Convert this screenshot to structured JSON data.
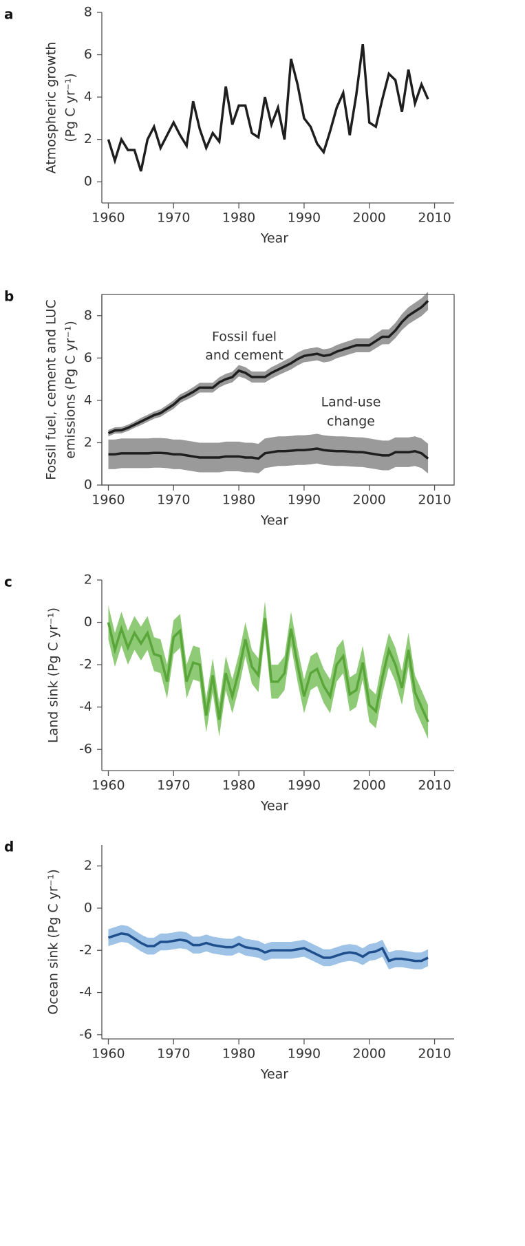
{
  "chart_data": [
    {
      "type": "line",
      "label": "a",
      "ylabel": [
        "Atmospheric growth",
        "(Pg C yr⁻¹)"
      ],
      "xlabel": "Year",
      "frame": false,
      "xlim": [
        1959,
        2013
      ],
      "xticks": [
        1960,
        1970,
        1980,
        1990,
        2000,
        2010
      ],
      "ylim": [
        -1,
        8
      ],
      "yticks": [
        0,
        2,
        4,
        6,
        8
      ],
      "x": [
        1960,
        1961,
        1962,
        1963,
        1964,
        1965,
        1966,
        1967,
        1968,
        1969,
        1970,
        1971,
        1972,
        1973,
        1974,
        1975,
        1976,
        1977,
        1978,
        1979,
        1980,
        1981,
        1982,
        1983,
        1984,
        1985,
        1986,
        1987,
        1988,
        1989,
        1990,
        1991,
        1992,
        1993,
        1994,
        1995,
        1996,
        1997,
        1998,
        1999,
        2000,
        2001,
        2002,
        2003,
        2004,
        2005,
        2006,
        2007,
        2008,
        2009
      ],
      "series": [
        {
          "color": "#1e1e1e",
          "values": [
            2.0,
            1.0,
            2.0,
            1.5,
            1.5,
            0.5,
            2.0,
            2.6,
            1.6,
            2.2,
            2.8,
            2.2,
            1.7,
            3.8,
            2.5,
            1.6,
            2.3,
            1.9,
            4.5,
            2.7,
            3.6,
            3.6,
            2.3,
            2.1,
            4.0,
            2.7,
            3.5,
            2.0,
            5.8,
            4.6,
            3.0,
            2.6,
            1.8,
            1.4,
            2.4,
            3.5,
            4.2,
            2.2,
            4.1,
            6.5,
            2.8,
            2.6,
            3.9,
            5.1,
            4.8,
            3.3,
            5.3,
            3.7,
            4.6,
            3.9
          ]
        }
      ]
    },
    {
      "type": "line",
      "label": "b",
      "ylabel": [
        "Fossil fuel, cement and LUC",
        "emissions (Pg C yr⁻¹)"
      ],
      "xlabel": "Year",
      "frame": true,
      "xlim": [
        1959,
        2013
      ],
      "xticks": [
        1960,
        1970,
        1980,
        1990,
        2000,
        2010
      ],
      "ylim": [
        0,
        9
      ],
      "yticks": [
        0,
        2,
        4,
        6,
        8
      ],
      "x": [
        1960,
        1961,
        1962,
        1963,
        1964,
        1965,
        1966,
        1967,
        1968,
        1969,
        1970,
        1971,
        1972,
        1973,
        1974,
        1975,
        1976,
        1977,
        1978,
        1979,
        1980,
        1981,
        1982,
        1983,
        1984,
        1985,
        1986,
        1987,
        1988,
        1989,
        1990,
        1991,
        1992,
        1993,
        1994,
        1995,
        1996,
        1997,
        1998,
        1999,
        2000,
        2001,
        2002,
        2003,
        2004,
        2005,
        2006,
        2007,
        2008,
        2009
      ],
      "annotations": [
        [
          "Fossil fuel",
          "and cement"
        ],
        [
          "Land-use",
          "change"
        ]
      ],
      "series": [
        {
          "color": "#1e1e1e",
          "band_color": "#9a9a9a",
          "values": [
            2.45,
            2.58,
            2.59,
            2.7,
            2.85,
            3.0,
            3.15,
            3.3,
            3.4,
            3.6,
            3.8,
            4.08,
            4.23,
            4.4,
            4.6,
            4.6,
            4.6,
            4.85,
            5.0,
            5.1,
            5.4,
            5.3,
            5.1,
            5.1,
            5.1,
            5.3,
            5.45,
            5.6,
            5.75,
            5.95,
            6.1,
            6.15,
            6.2,
            6.1,
            6.15,
            6.3,
            6.4,
            6.5,
            6.6,
            6.6,
            6.6,
            6.8,
            7.0,
            7.0,
            7.3,
            7.7,
            8.0,
            8.2,
            8.4,
            8.7
          ],
          "error": [
            0.15,
            0.15,
            0.15,
            0.15,
            0.15,
            0.17,
            0.17,
            0.17,
            0.18,
            0.18,
            0.2,
            0.2,
            0.2,
            0.22,
            0.23,
            0.23,
            0.23,
            0.24,
            0.25,
            0.25,
            0.27,
            0.27,
            0.26,
            0.26,
            0.26,
            0.27,
            0.27,
            0.28,
            0.29,
            0.3,
            0.3,
            0.31,
            0.31,
            0.31,
            0.31,
            0.31,
            0.32,
            0.32,
            0.33,
            0.33,
            0.33,
            0.34,
            0.35,
            0.35,
            0.36,
            0.38,
            0.4,
            0.41,
            0.42,
            0.43
          ]
        },
        {
          "color": "#1e1e1e",
          "band_color": "#9a9a9a",
          "values": [
            1.45,
            1.45,
            1.5,
            1.5,
            1.5,
            1.5,
            1.5,
            1.52,
            1.52,
            1.5,
            1.45,
            1.45,
            1.4,
            1.35,
            1.3,
            1.3,
            1.3,
            1.3,
            1.35,
            1.35,
            1.35,
            1.3,
            1.3,
            1.25,
            1.5,
            1.55,
            1.6,
            1.6,
            1.62,
            1.65,
            1.65,
            1.68,
            1.72,
            1.65,
            1.62,
            1.6,
            1.6,
            1.58,
            1.56,
            1.55,
            1.5,
            1.45,
            1.4,
            1.4,
            1.55,
            1.55,
            1.55,
            1.6,
            1.5,
            1.25
          ],
          "error": [
            0.7,
            0.7,
            0.7,
            0.7,
            0.7,
            0.7,
            0.7,
            0.7,
            0.7,
            0.7,
            0.7,
            0.7,
            0.7,
            0.7,
            0.7,
            0.7,
            0.7,
            0.7,
            0.7,
            0.7,
            0.7,
            0.7,
            0.7,
            0.7,
            0.7,
            0.7,
            0.7,
            0.7,
            0.7,
            0.7,
            0.7,
            0.7,
            0.7,
            0.7,
            0.7,
            0.7,
            0.7,
            0.7,
            0.7,
            0.7,
            0.7,
            0.7,
            0.7,
            0.7,
            0.7,
            0.7,
            0.7,
            0.7,
            0.7,
            0.7
          ]
        }
      ]
    },
    {
      "type": "line",
      "label": "c",
      "ylabel": [
        "Land sink (Pg C yr⁻¹)"
      ],
      "xlabel": "Year",
      "frame": false,
      "xlim": [
        1959,
        2013
      ],
      "xticks": [
        1960,
        1970,
        1980,
        1990,
        2000,
        2010
      ],
      "ylim": [
        -7,
        2
      ],
      "yticks": [
        -6,
        -4,
        -2,
        0,
        2
      ],
      "x": [
        1960,
        1961,
        1962,
        1963,
        1964,
        1965,
        1966,
        1967,
        1968,
        1969,
        1970,
        1971,
        1972,
        1973,
        1974,
        1975,
        1976,
        1977,
        1978,
        1979,
        1980,
        1981,
        1982,
        1983,
        1984,
        1985,
        1986,
        1987,
        1988,
        1989,
        1990,
        1991,
        1992,
        1993,
        1994,
        1995,
        1996,
        1997,
        1998,
        1999,
        2000,
        2001,
        2002,
        2003,
        2004,
        2005,
        2006,
        2007,
        2008,
        2009
      ],
      "series": [
        {
          "color": "#5aa63a",
          "band_color": "#8fcb76",
          "values": [
            0.0,
            -1.3,
            -0.3,
            -1.2,
            -0.5,
            -1.0,
            -0.5,
            -1.5,
            -1.6,
            -2.8,
            -0.7,
            -0.4,
            -2.8,
            -1.9,
            -2.0,
            -4.4,
            -2.5,
            -4.6,
            -2.4,
            -3.5,
            -2.3,
            -0.8,
            -2.1,
            -2.5,
            0.2,
            -2.8,
            -2.8,
            -2.4,
            -0.3,
            -2.0,
            -3.5,
            -2.4,
            -2.2,
            -3.0,
            -3.5,
            -2.0,
            -1.6,
            -3.4,
            -3.2,
            -1.9,
            -3.9,
            -4.2,
            -2.6,
            -1.3,
            -2.0,
            -3.1,
            -1.3,
            -3.3,
            -4.0,
            -4.7
          ],
          "error": [
            0.8,
            0.8,
            0.8,
            0.8,
            0.8,
            0.8,
            0.8,
            0.8,
            0.8,
            0.8,
            0.8,
            0.8,
            0.8,
            0.8,
            0.8,
            0.8,
            0.8,
            0.8,
            0.8,
            0.8,
            0.8,
            0.8,
            0.8,
            0.8,
            0.8,
            0.8,
            0.8,
            0.8,
            0.8,
            0.8,
            0.8,
            0.8,
            0.8,
            0.8,
            0.8,
            0.8,
            0.8,
            0.8,
            0.8,
            0.8,
            0.8,
            0.8,
            0.8,
            0.8,
            0.8,
            0.8,
            0.8,
            0.8,
            0.8,
            0.8
          ]
        }
      ]
    },
    {
      "type": "line",
      "label": "d",
      "ylabel": [
        "Ocean sink (Pg C yr⁻¹)"
      ],
      "xlabel": "Year",
      "frame": false,
      "xlim": [
        1959,
        2013
      ],
      "xticks": [
        1960,
        1970,
        1980,
        1990,
        2000,
        2010
      ],
      "ylim": [
        -6.2,
        3
      ],
      "yticks": [
        -6,
        -4,
        -2,
        0,
        2
      ],
      "x": [
        1960,
        1961,
        1962,
        1963,
        1964,
        1965,
        1966,
        1967,
        1968,
        1969,
        1970,
        1971,
        1972,
        1973,
        1974,
        1975,
        1976,
        1977,
        1978,
        1979,
        1980,
        1981,
        1982,
        1983,
        1984,
        1985,
        1986,
        1987,
        1988,
        1989,
        1990,
        1991,
        1992,
        1993,
        1994,
        1995,
        1996,
        1997,
        1998,
        1999,
        2000,
        2001,
        2002,
        2003,
        2004,
        2005,
        2006,
        2007,
        2008,
        2009
      ],
      "series": [
        {
          "color": "#1f4e8c",
          "band_color": "#9ec3e6",
          "values": [
            -1.4,
            -1.3,
            -1.2,
            -1.25,
            -1.45,
            -1.65,
            -1.8,
            -1.8,
            -1.6,
            -1.6,
            -1.55,
            -1.5,
            -1.55,
            -1.75,
            -1.75,
            -1.65,
            -1.75,
            -1.8,
            -1.85,
            -1.85,
            -1.7,
            -1.85,
            -1.9,
            -1.95,
            -2.1,
            -2.0,
            -2.0,
            -2.0,
            -2.0,
            -1.95,
            -1.9,
            -2.05,
            -2.2,
            -2.35,
            -2.35,
            -2.25,
            -2.15,
            -2.1,
            -2.15,
            -2.3,
            -2.1,
            -2.05,
            -1.9,
            -2.5,
            -2.4,
            -2.4,
            -2.45,
            -2.5,
            -2.5,
            -2.35
          ],
          "error": [
            0.4,
            0.4,
            0.4,
            0.4,
            0.4,
            0.4,
            0.4,
            0.4,
            0.4,
            0.4,
            0.4,
            0.4,
            0.4,
            0.4,
            0.4,
            0.4,
            0.4,
            0.4,
            0.4,
            0.4,
            0.4,
            0.4,
            0.4,
            0.4,
            0.4,
            0.4,
            0.4,
            0.4,
            0.4,
            0.4,
            0.4,
            0.4,
            0.4,
            0.4,
            0.4,
            0.4,
            0.4,
            0.4,
            0.4,
            0.4,
            0.4,
            0.4,
            0.4,
            0.4,
            0.4,
            0.4,
            0.4,
            0.4,
            0.4,
            0.4
          ]
        }
      ]
    }
  ]
}
